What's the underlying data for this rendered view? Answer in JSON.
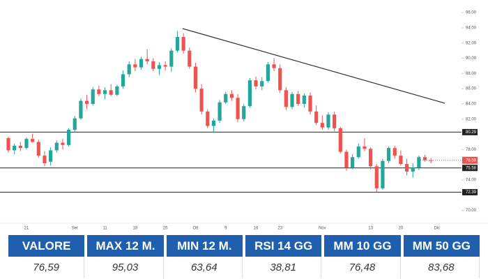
{
  "chart_data": {
    "type": "candlestick",
    "categories": [
      null,
      null,
      null,
      "21",
      null,
      null,
      null,
      null,
      null,
      null,
      null,
      "Set",
      null,
      null,
      null,
      null,
      "11",
      null,
      null,
      null,
      null,
      "18",
      null,
      null,
      null,
      null,
      "25",
      null,
      null,
      null,
      null,
      "Ott",
      null,
      null,
      null,
      null,
      "9",
      null,
      null,
      null,
      null,
      "16",
      null,
      null,
      null,
      "23",
      null,
      null,
      null,
      null,
      null,
      null,
      "Nov",
      null,
      null,
      null,
      null,
      null,
      null,
      null,
      "13",
      null,
      null,
      null,
      null,
      "20",
      null,
      null,
      null,
      null,
      null,
      "Dic"
    ],
    "open": [
      79.5,
      77.9,
      78.5,
      78.2,
      79.4,
      79.0,
      77.2,
      76.4,
      77.9,
      78.9,
      78.6,
      80.6,
      82.1,
      84.4,
      84.0,
      85.9,
      85.3,
      85.8,
      85.2,
      86.3,
      87.9,
      89.2,
      88.8,
      89.9,
      89.6,
      88.6,
      89.1,
      88.9,
      91.0,
      92.8,
      91.0,
      88.9,
      86.0,
      83.0,
      81.1,
      81.8,
      84.2,
      85.3,
      84.8,
      82.0,
      83.7,
      87.1,
      86.3,
      87.0,
      89.2,
      88.7,
      85.8,
      83.6,
      85.3,
      84.0,
      85.1,
      83.0,
      81.5,
      80.9,
      82.6,
      80.8,
      77.7,
      75.6,
      77.0,
      78.4,
      78.1,
      75.8,
      72.9,
      76.5,
      78.2,
      77.2,
      76.1,
      75.1,
      75.6,
      77.0,
      76.6,
      null
    ],
    "high": [
      79.7,
      78.8,
      79.0,
      79.6,
      80.1,
      79.3,
      77.8,
      78.3,
      79.2,
      79.4,
      80.8,
      82.4,
      84.7,
      85.2,
      86.2,
      86.4,
      86.2,
      86.6,
      86.5,
      88.4,
      89.6,
      89.9,
      90.2,
      91.2,
      90.0,
      89.5,
      89.6,
      91.3,
      93.6,
      93.3,
      91.4,
      89.4,
      86.6,
      83.3,
      82.1,
      84.5,
      85.6,
      85.8,
      85.3,
      84.0,
      87.4,
      87.6,
      87.5,
      89.5,
      90.0,
      89.2,
      86.2,
      85.6,
      85.7,
      85.4,
      85.5,
      83.8,
      82.5,
      82.9,
      83.0,
      81.0,
      78.0,
      77.4,
      78.8,
      79.5,
      78.3,
      76.1,
      76.8,
      78.4,
      78.5,
      77.9,
      76.8,
      76.2,
      77.2,
      77.3,
      76.9,
      null
    ],
    "low": [
      77.6,
      77.4,
      77.8,
      78.0,
      78.9,
      76.9,
      75.8,
      75.9,
      77.6,
      78.0,
      78.4,
      80.2,
      81.9,
      83.3,
      83.8,
      85.0,
      84.6,
      85.0,
      85.0,
      86.0,
      87.5,
      88.3,
      88.5,
      89.2,
      88.3,
      87.8,
      88.4,
      88.2,
      90.8,
      90.6,
      88.6,
      85.5,
      82.6,
      80.8,
      80.2,
      81.5,
      84.0,
      84.4,
      81.6,
      81.7,
      83.5,
      85.9,
      85.8,
      86.8,
      88.3,
      85.4,
      83.2,
      83.3,
      83.7,
      83.5,
      82.6,
      81.2,
      80.6,
      80.6,
      80.4,
      77.5,
      75.2,
      75.4,
      76.8,
      77.8,
      75.4,
      72.4,
      72.7,
      76.2,
      76.8,
      75.9,
      74.6,
      74.3,
      75.3,
      76.4,
      76.2,
      null
    ],
    "close": [
      77.9,
      78.5,
      78.2,
      79.4,
      79.0,
      77.2,
      76.2,
      77.9,
      78.9,
      78.6,
      80.6,
      82.1,
      84.4,
      84.0,
      85.9,
      85.3,
      85.8,
      85.2,
      86.3,
      87.9,
      89.2,
      88.8,
      89.9,
      89.6,
      88.6,
      89.1,
      88.9,
      91.0,
      92.8,
      91.0,
      88.9,
      86.0,
      83.0,
      81.1,
      81.8,
      84.2,
      85.3,
      84.8,
      82.0,
      83.7,
      87.1,
      86.3,
      87.0,
      89.2,
      88.7,
      85.8,
      83.6,
      85.3,
      84.0,
      85.1,
      83.0,
      81.5,
      80.9,
      82.6,
      80.8,
      77.7,
      75.6,
      77.0,
      78.4,
      78.1,
      75.8,
      72.9,
      76.5,
      78.2,
      77.2,
      76.1,
      75.1,
      75.6,
      77.0,
      76.6,
      76.59,
      null
    ],
    "up_color": "#26a69a",
    "down_color": "#ef5350",
    "ylim": [
      68.5,
      97.2
    ],
    "yticks": [
      {
        "value": 96,
        "label": "96.00"
      },
      {
        "value": 94,
        "label": "94.00"
      },
      {
        "value": 92,
        "label": "92.00"
      },
      {
        "value": 90,
        "label": "90.00"
      },
      {
        "value": 88,
        "label": "88.00"
      },
      {
        "value": 86,
        "label": "86.00"
      },
      {
        "value": 84,
        "label": "84.00"
      },
      {
        "value": 82,
        "label": "82.00"
      },
      {
        "value": 78,
        "label": "78.00"
      },
      {
        "value": 74,
        "label": "74.00"
      },
      {
        "value": 70,
        "label": "70.00"
      }
    ],
    "levels": [
      {
        "value": 80.29,
        "label": "80.29"
      },
      {
        "value": 75.58,
        "label": "75.58"
      },
      {
        "value": 72.39,
        "label": "72.39"
      }
    ],
    "last_price": {
      "value": 76.59,
      "label": "76.59"
    },
    "grid": false
  },
  "table": {
    "headers": [
      "VALORE",
      "MAX 12 M.",
      "MIN 12 M.",
      "RSI 14 GG",
      "MM 10 GG",
      "MM 50 GG"
    ],
    "rows": [
      [
        "76,59",
        "95,03",
        "63,64",
        "38,81",
        "76,48",
        "83,68"
      ]
    ]
  }
}
